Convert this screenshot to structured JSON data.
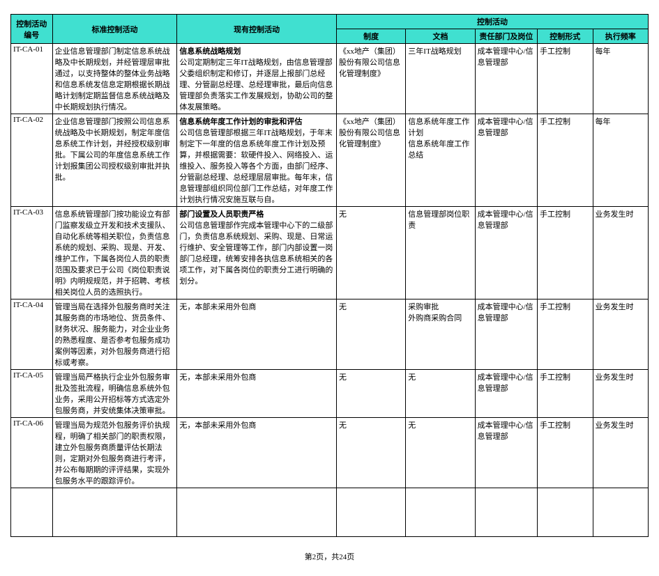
{
  "headers": {
    "group": "控制活动",
    "id": "控制活动编号",
    "std": "标准控制活动",
    "cur": "现有控制活动",
    "sys": "制度",
    "doc": "文档",
    "dept": "责任部门及岗位",
    "form": "控制形式",
    "freq": "执行频率"
  },
  "rows": [
    {
      "id": "IT-CA-01",
      "std": "企业信息管理部门制定信息系统战略及中长期规划，并经管理层审批通过，以支持整体的整体业务战略和信息系统发信息定期根据长期战略计划制定期监督信息系统战略及中长期规划执行情况。",
      "cur_title": "信息系统战略规划",
      "cur_body": "公司定期制定三年IT战略规划，由信息管理部父委组织制定和修订，并逐层上报部门总经理、分管副总经理、总经理审批，最后向信息管理部负责落实工作发展规划，协助公司的整体发展策略。",
      "sys": "《xx地产（集团）股份有限公司信息化管理制度》",
      "doc": "三年IT战略规划",
      "dept": "成本管理中心/信息管理部",
      "form": "手工控制",
      "freq": "每年"
    },
    {
      "id": "IT-CA-02",
      "std": "企业信息管理部门按照公司信息系统战略及中长期规划，制定年度信息系统工作计划，并经授权级别审批。下属公司的年度信息系统工作计划报集团公司授权级别审批并执批。",
      "cur_title": "信息系统年度工作计划的审批和评估",
      "cur_body": "公司信息管理部根据三年IT战略规划，于年末制定下一年度的信息系统年度工作计划及预算，并根据需要：软硬件投入、网络投入、运维投入、服务投入等各个方面，由部门经序、分管副总经理、总经理层层审批。每年末，信息管理部组织同位部门工作总结，对年度工作计划执行情况安施互联与自。",
      "sys": "《xx地产（集团）股份有限公司信息化管理制度》",
      "doc": "信息系统年度工作计划\n信息系统年度工作总结",
      "dept": "成本管理中心/信息管理部",
      "form": "手工控制",
      "freq": "每年"
    },
    {
      "id": "IT-CA-03",
      "std": "信息系统管理部门按功能设立有部门监察发级立开发和技术支援队、自动化系统等相关职位，负责信息系统的规划、采购、现是、开发、维护工作，下属各岗位人员的职责范围及要求已于公司《岗位职责说明》内明规规范，并于招聘、考核相关岗位人员的选照执行。",
      "cur_title": "部门设置及人员职责严格",
      "cur_body": "公司信息管理部作完成本管理中心下的二级部门，负责信息系统规划、采购、现是、日常运行维护、安全管理等工作，部门内部设置一岗部门总经理，统筹安排各执信息系统相关的各项工作，对下属各岗位的职责分工进行明确的划分。",
      "sys": "无",
      "doc": "信息管理部岗位职责",
      "dept": "成本管理中心/信息管理部",
      "form": "手工控制",
      "freq": "业务发生时"
    },
    {
      "id": "IT-CA-04",
      "std": "管理当局在选择外包服务商时关注其服务商的市场地位、货员条件、财务状况、服务能力，对企业业务的熟悉程度、是否参考包服务成功案例等因素，对外包服务商进行招标或考察。",
      "cur_title": "",
      "cur_body": "无，本部未采用外包商",
      "sys": "无",
      "doc": "采购审批\n外购商采购合同",
      "dept": "成本管理中心/信息管理部",
      "form": "手工控制",
      "freq": "业务发生时"
    },
    {
      "id": "IT-CA-05",
      "std": "管理当局严格执行企业外包服务审批及签批流程，明确信息系统外包业务，采用公开招标等方式选定外包服务商，并安统集体决策审批。",
      "cur_title": "",
      "cur_body": "无，本部未采用外包商",
      "sys": "无",
      "doc": "无",
      "dept": "成本管理中心/信息管理部",
      "form": "手工控制",
      "freq": "业务发生时"
    },
    {
      "id": "IT-CA-06",
      "std": "管理当局为规范外包服务评价执规程，明确了相关部门的职责权限，建立外包服务商质量评估长期法则，定期对外包服务商进行考评，并公布每期期的评评结果，实现外包服务水平的跟踪评价。",
      "cur_title": "",
      "cur_body": "无，本部未采用外包商",
      "sys": "无",
      "doc": "无",
      "dept": "成本管理中心/信息管理部",
      "form": "手工控制",
      "freq": "业务发生时"
    }
  ],
  "footer": "第2页，共24页",
  "style": {
    "header_bg": "#40e0d0",
    "border_color": "#000000",
    "font_size": 11,
    "bg": "#ffffff"
  }
}
